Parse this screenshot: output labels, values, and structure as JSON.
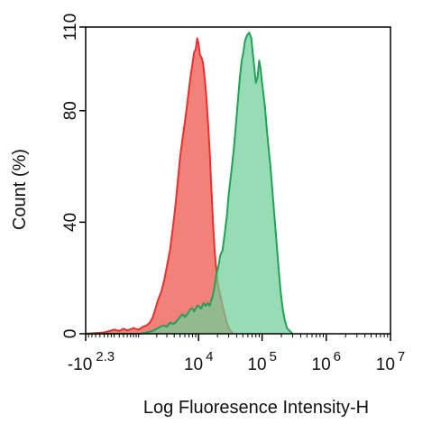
{
  "chart_data": {
    "type": "area",
    "title": "",
    "xlabel": "Log Fluoresence Intensity-H",
    "ylabel": "Count (%)",
    "x_scale": "biexponential-log",
    "xlim": [
      -200,
      10000000
    ],
    "ylim": [
      0,
      110
    ],
    "grid": false,
    "legend": "none",
    "x_ticks": [
      {
        "value": -200,
        "base": "-10",
        "exp": "2.3"
      },
      {
        "value": 10000,
        "base": "10",
        "exp": "4"
      },
      {
        "value": 100000,
        "base": "10",
        "exp": "5"
      },
      {
        "value": 1000000,
        "base": "10",
        "exp": "6"
      },
      {
        "value": 10000000,
        "base": "10",
        "exp": "7"
      }
    ],
    "y_ticks": [
      {
        "value": 0,
        "label": "0"
      },
      {
        "value": 40,
        "label": "40"
      },
      {
        "value": 80,
        "label": "80"
      },
      {
        "value": 110,
        "label": "110"
      }
    ],
    "series": [
      {
        "color": "#e8302e",
        "fill": "#f07a72",
        "points": [
          [
            -200,
            0
          ],
          [
            50,
            0.5
          ],
          [
            200,
            1.5
          ],
          [
            300,
            1
          ],
          [
            400,
            1.8
          ],
          [
            500,
            1.2
          ],
          [
            700,
            2
          ],
          [
            900,
            1.5
          ],
          [
            1100,
            2.5
          ],
          [
            1300,
            3
          ],
          [
            1500,
            4
          ],
          [
            1700,
            6
          ],
          [
            1900,
            9
          ],
          [
            2100,
            12
          ],
          [
            2400,
            15
          ],
          [
            2700,
            19
          ],
          [
            3000,
            24
          ],
          [
            3400,
            30
          ],
          [
            3800,
            38
          ],
          [
            4200,
            46
          ],
          [
            4600,
            55
          ],
          [
            5000,
            63
          ],
          [
            5500,
            70
          ],
          [
            6000,
            76
          ],
          [
            6500,
            82
          ],
          [
            7000,
            88
          ],
          [
            7500,
            93
          ],
          [
            8000,
            97
          ],
          [
            8500,
            101
          ],
          [
            9000,
            102
          ],
          [
            9500,
            106
          ],
          [
            10000,
            104
          ],
          [
            10500,
            100
          ],
          [
            11200,
            99
          ],
          [
            11800,
            97
          ],
          [
            12500,
            92
          ],
          [
            13300,
            85
          ],
          [
            14200,
            75
          ],
          [
            15100,
            65
          ],
          [
            16000,
            52
          ],
          [
            17000,
            40
          ],
          [
            18000,
            30
          ],
          [
            19000,
            24
          ],
          [
            20000,
            19
          ],
          [
            21000,
            16
          ],
          [
            22500,
            13
          ],
          [
            24000,
            10
          ],
          [
            26000,
            7
          ],
          [
            28000,
            4
          ],
          [
            31000,
            1.5
          ],
          [
            35000,
            0
          ]
        ]
      },
      {
        "color": "#1fa257",
        "fill": "#6fce97",
        "points": [
          [
            -200,
            0
          ],
          [
            1000,
            0
          ],
          [
            1700,
            1
          ],
          [
            2100,
            2
          ],
          [
            2600,
            3
          ],
          [
            3000,
            2.5
          ],
          [
            3400,
            4
          ],
          [
            3800,
            3.5
          ],
          [
            4200,
            4
          ],
          [
            4600,
            5
          ],
          [
            5000,
            6
          ],
          [
            5500,
            7
          ],
          [
            6000,
            6
          ],
          [
            6500,
            7
          ],
          [
            7000,
            8
          ],
          [
            7500,
            9
          ],
          [
            8000,
            9
          ],
          [
            8500,
            8
          ],
          [
            9000,
            9
          ],
          [
            9500,
            10
          ],
          [
            10000,
            10
          ],
          [
            11000,
            9
          ],
          [
            12000,
            11
          ],
          [
            13000,
            10
          ],
          [
            14000,
            11
          ],
          [
            15000,
            10
          ],
          [
            16000,
            12
          ],
          [
            17000,
            14
          ],
          [
            18000,
            17
          ],
          [
            19000,
            21
          ],
          [
            20000,
            23
          ],
          [
            21000,
            25
          ],
          [
            22000,
            28
          ],
          [
            24000,
            30
          ],
          [
            26000,
            36
          ],
          [
            28000,
            42
          ],
          [
            30000,
            50
          ],
          [
            33000,
            58
          ],
          [
            36000,
            66
          ],
          [
            39000,
            75
          ],
          [
            42000,
            84
          ],
          [
            45000,
            92
          ],
          [
            48000,
            98
          ],
          [
            51000,
            101
          ],
          [
            54000,
            105
          ],
          [
            58000,
            107
          ],
          [
            63000,
            108
          ],
          [
            68000,
            106
          ],
          [
            72000,
            100
          ],
          [
            76000,
            95
          ],
          [
            80000,
            90
          ],
          [
            85000,
            92
          ],
          [
            90000,
            98
          ],
          [
            95000,
            95
          ],
          [
            100000,
            90
          ],
          [
            110000,
            82
          ],
          [
            120000,
            72
          ],
          [
            135000,
            60
          ],
          [
            150000,
            47
          ],
          [
            165000,
            35
          ],
          [
            180000,
            24
          ],
          [
            195000,
            15
          ],
          [
            210000,
            9
          ],
          [
            225000,
            5
          ],
          [
            245000,
            2
          ],
          [
            270000,
            1
          ],
          [
            300000,
            0
          ]
        ]
      }
    ]
  }
}
